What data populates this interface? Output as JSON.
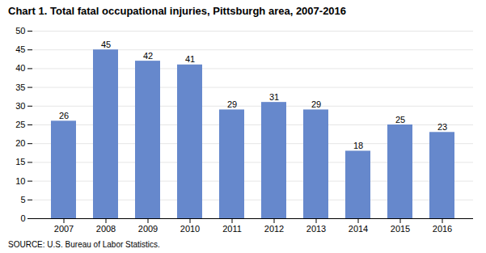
{
  "chart_data": {
    "type": "bar",
    "title": "Chart 1. Total fatal occupational injuries, Pittsburgh area, 2007-2016",
    "source": "SOURCE: U.S. Bureau of Labor Statistics.",
    "categories": [
      "2007",
      "2008",
      "2009",
      "2010",
      "2011",
      "2012",
      "2013",
      "2014",
      "2015",
      "2016"
    ],
    "values": [
      26,
      45,
      42,
      41,
      29,
      31,
      29,
      18,
      25,
      23
    ],
    "color": "#6688CC",
    "ylim": [
      0,
      50
    ],
    "yticks": [
      0,
      5,
      10,
      15,
      20,
      25,
      30,
      35,
      40,
      45,
      50
    ],
    "grid": true,
    "data_labels": true
  }
}
